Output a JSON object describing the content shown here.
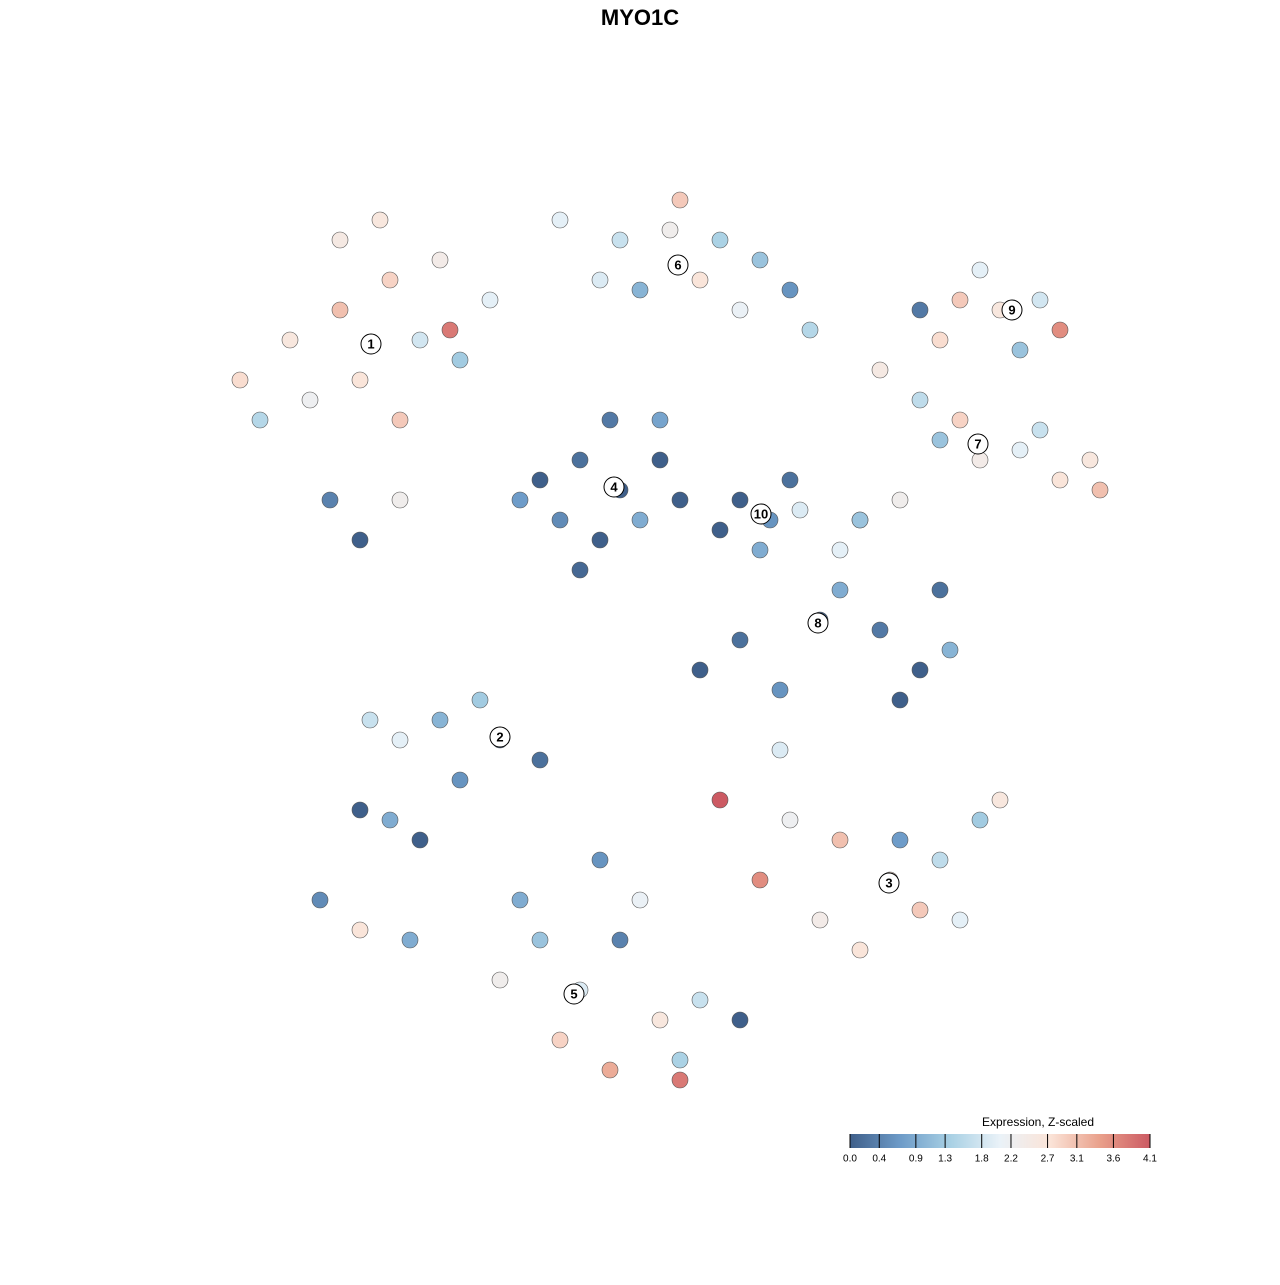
{
  "chart_data": {
    "type": "scatter",
    "title": "MYO1C",
    "xlim": [
      -44,
      50
    ],
    "ylim": [
      -46,
      46
    ],
    "x": [
      -35,
      -30,
      -25,
      -20,
      -22,
      -28,
      -33,
      -38,
      -24,
      -18,
      -15,
      -30,
      -19,
      -31,
      -28,
      -24,
      -40,
      -26,
      -8,
      -2,
      3,
      8,
      12,
      15,
      0,
      6,
      -4,
      10,
      4,
      17,
      28,
      32,
      36,
      40,
      30,
      42,
      38,
      34,
      24,
      28,
      30,
      34,
      38,
      42,
      46,
      40,
      26,
      22,
      32,
      45,
      -2,
      -6,
      2,
      -8,
      -4,
      0,
      4,
      -10,
      -3,
      2,
      -6,
      -12,
      10,
      13,
      12,
      15,
      8,
      16,
      18,
      10,
      6,
      14,
      24,
      28,
      31,
      26,
      20,
      30,
      20,
      22,
      -14,
      -20,
      -24,
      -28,
      -25,
      -22,
      -18,
      -10,
      -16,
      -27,
      -32,
      -28,
      -23,
      25,
      20,
      15,
      30,
      34,
      36,
      28,
      18,
      22,
      12,
      32,
      26,
      8,
      14,
      -6,
      -10,
      -14,
      -2,
      2,
      6,
      -8,
      -3,
      4,
      10,
      -12,
      0,
      4,
      -4
    ],
    "y": [
      30,
      33,
      36,
      38,
      30,
      26,
      24,
      22,
      22,
      28,
      34,
      40,
      31,
      14,
      10,
      14,
      26,
      42,
      42,
      40,
      41,
      40,
      38,
      35,
      35,
      36,
      36,
      33,
      44,
      31,
      33,
      34,
      33,
      34,
      30,
      31,
      29,
      37,
      27,
      24,
      20,
      18,
      19,
      16,
      15,
      21,
      14,
      12,
      22,
      18,
      15,
      18,
      18,
      12,
      10,
      12,
      14,
      16,
      22,
      22,
      7,
      14,
      14,
      12,
      9,
      16,
      11,
      13,
      2,
      0,
      -3,
      -5,
      1,
      -3,
      -1,
      -6,
      5,
      5,
      9,
      12,
      -10,
      -8,
      -10,
      -17,
      -18,
      -20,
      -14,
      -12,
      -6,
      -8,
      -26,
      -29,
      -30,
      -24,
      -20,
      -18,
      -22,
      -18,
      -16,
      -27,
      -28,
      -31,
      -24,
      -28,
      -20,
      -16,
      -11,
      -35,
      -30,
      -34,
      -30,
      -38,
      -36,
      -40,
      -43,
      -42,
      -38,
      -26,
      -26,
      -44,
      -22
    ],
    "values": [
      2.6,
      3.1,
      2.9,
      2.4,
      1.8,
      2.7,
      2.2,
      1.5,
      3.0,
      1.3,
      2.0,
      2.5,
      3.8,
      0.4,
      0.0,
      2.3,
      2.8,
      2.6,
      2.0,
      1.7,
      2.3,
      1.4,
      1.2,
      0.6,
      1.0,
      2.7,
      1.9,
      2.1,
      3.0,
      1.5,
      0.3,
      3.0,
      2.6,
      1.8,
      2.8,
      3.6,
      1.2,
      2.0,
      2.5,
      1.6,
      1.2,
      2.4,
      2.0,
      2.7,
      3.1,
      1.7,
      2.3,
      0.9,
      2.9,
      2.6,
      0.0,
      0.2,
      0.0,
      0.5,
      0.0,
      0.9,
      0.0,
      0.0,
      0.3,
      0.8,
      0.1,
      0.7,
      0.0,
      0.6,
      0.9,
      0.2,
      0.0,
      1.9,
      0.0,
      0.2,
      0.0,
      0.6,
      0.3,
      0.0,
      1.0,
      0.0,
      0.9,
      0.2,
      2.0,
      1.2,
      0.0,
      1.0,
      2.0,
      0.0,
      0.9,
      0.0,
      0.6,
      0.2,
      1.3,
      1.7,
      0.5,
      2.7,
      0.9,
      2.8,
      3.1,
      2.2,
      1.6,
      1.3,
      2.6,
      3.0,
      2.4,
      2.7,
      3.6,
      2.0,
      0.7,
      4.1,
      1.9,
      1.9,
      1.2,
      2.3,
      0.4,
      2.6,
      1.7,
      2.9,
      3.3,
      1.4,
      0.0,
      0.9,
      2.1,
      3.8,
      0.6
    ],
    "clusters": [
      {
        "label": "1",
        "x": -26.9,
        "y": 29.6
      },
      {
        "label": "2",
        "x": -14,
        "y": -9.7
      },
      {
        "label": "3",
        "x": 24.9,
        "y": -24.3
      },
      {
        "label": "4",
        "x": -2.6,
        "y": 15.3
      },
      {
        "label": "5",
        "x": -6.6,
        "y": -35.4
      },
      {
        "label": "6",
        "x": 3.8,
        "y": 37.5
      },
      {
        "label": "7",
        "x": 33.8,
        "y": 19.6
      },
      {
        "label": "8",
        "x": 17.8,
        "y": 1.7
      },
      {
        "label": "9",
        "x": 37.2,
        "y": 33
      },
      {
        "label": "10",
        "x": 12.1,
        "y": 12.6
      }
    ],
    "colorbar": {
      "title": "Expression, Z-scaled",
      "lim": [
        0,
        4.1
      ],
      "ticks": [
        {
          "value": 0,
          "label": "0.0"
        },
        0.4,
        0.9,
        1.3,
        1.8,
        2.2,
        2.7,
        3.1,
        3.6,
        4.1
      ],
      "colors": [
        "#3f5f8a",
        "#6d9bc8",
        "#a8d0e4",
        "#eaf2f8",
        "#fbe4d8",
        "#e9a08b",
        "#cc5a63"
      ]
    }
  }
}
